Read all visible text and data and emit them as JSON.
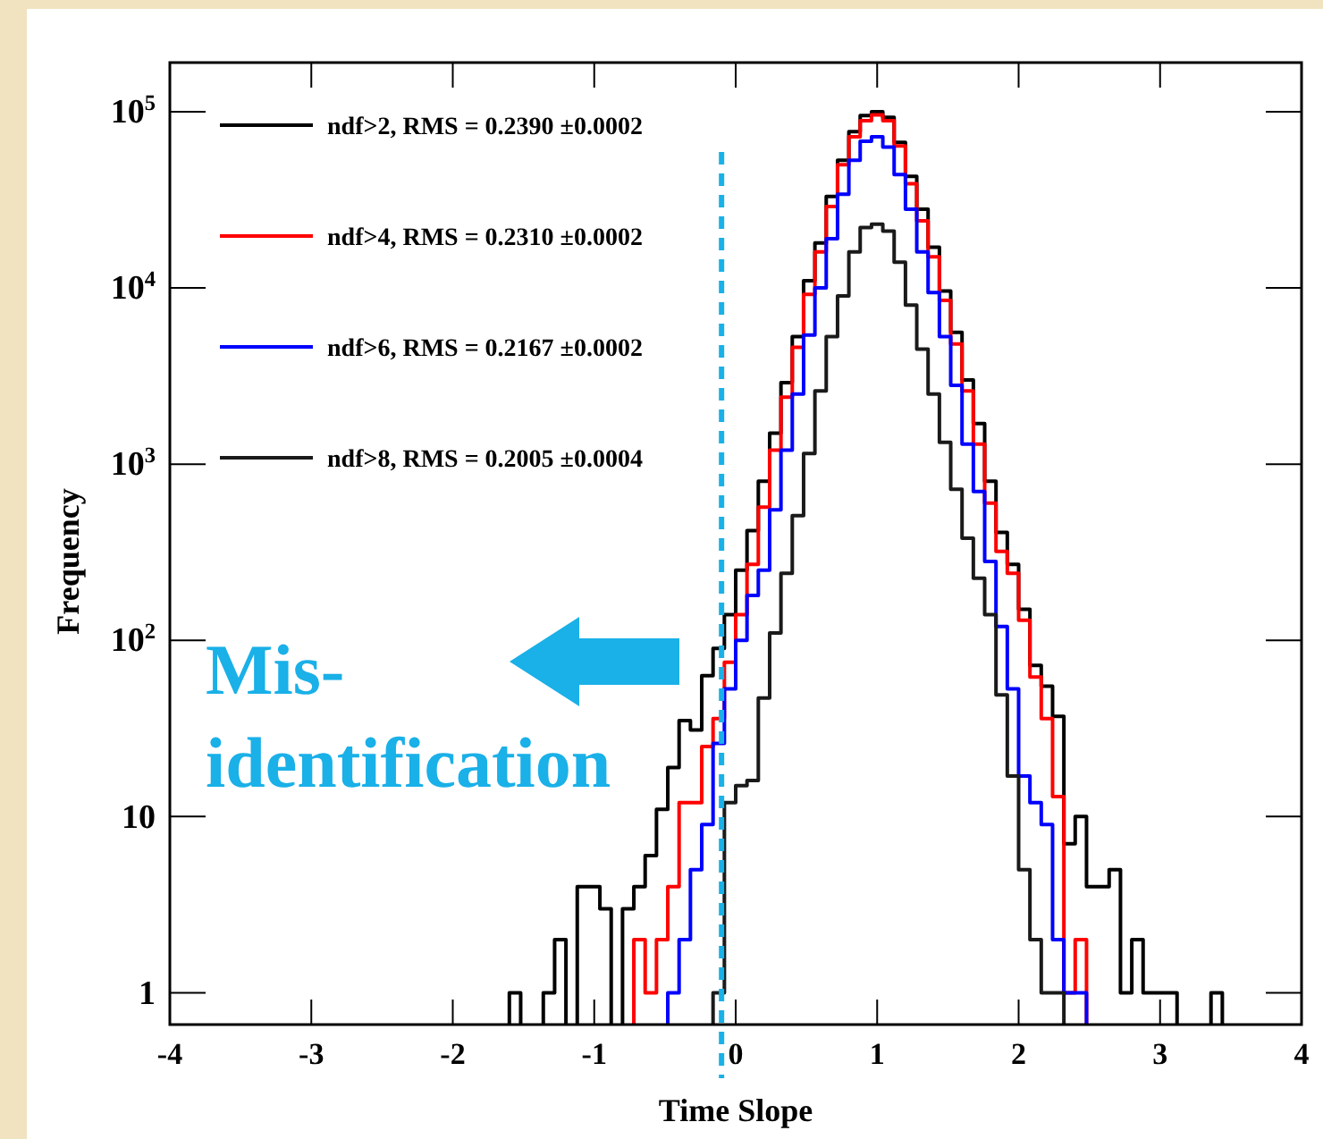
{
  "chart_data": {
    "type": "histogram",
    "xlabel": "Time Slope",
    "ylabel": "Frequency",
    "log": true,
    "legend": "top left",
    "xlim": [
      -4,
      4
    ],
    "xticks": [
      -4,
      -3,
      -2,
      -1,
      0,
      1,
      2,
      3,
      4
    ],
    "ylim": [
      0.66,
      190000
    ],
    "yticks": [
      1,
      10,
      {
        "value": 100,
        "label": "10$^{2}$"
      },
      {
        "value": 1000,
        "label": "10$^{3}$"
      },
      {
        "value": 10000,
        "label": "10$^{4}$"
      },
      {
        "value": 100000,
        "label": "10$^{5}$"
      }
    ],
    "bins": [
      -4,
      -3.92,
      -3.84,
      -3.76,
      -3.68,
      -3.6,
      -3.52,
      -3.44,
      -3.36,
      -3.28,
      -3.2,
      -3.12,
      -3.04,
      -2.96,
      -2.88,
      -2.8,
      -2.72,
      -2.64,
      -2.56,
      -2.48,
      -2.4,
      -2.32,
      -2.24,
      -2.16,
      -2.08,
      -2,
      -1.92,
      -1.84,
      -1.76,
      -1.68,
      -1.6,
      -1.52,
      -1.44,
      -1.36,
      -1.28,
      -1.2,
      -1.12,
      -1.04,
      -0.96,
      -0.88,
      -0.8,
      -0.72,
      -0.64,
      -0.56,
      -0.48,
      -0.4,
      -0.32,
      -0.24,
      -0.16,
      -0.08,
      0,
      0.08,
      0.16,
      0.24,
      0.32,
      0.4,
      0.48,
      0.56,
      0.64,
      0.72,
      0.8,
      0.88,
      0.96,
      1.04,
      1.12,
      1.2,
      1.28,
      1.36,
      1.44,
      1.52,
      1.6,
      1.68,
      1.76,
      1.84,
      1.92,
      2,
      2.08,
      2.16,
      2.24,
      2.32,
      2.4,
      2.48,
      2.56,
      2.64,
      2.72,
      2.8,
      2.88,
      2.96,
      3.04,
      3.12,
      3.2,
      3.28,
      3.36,
      3.44,
      3.52,
      3.6,
      3.68,
      3.76,
      3.84,
      3.92,
      4
    ],
    "series": [
      {
        "name": "ndf>2, RMS = 0.2390 ±0.0002",
        "color": "#000000",
        "values": [
          null,
          null,
          null,
          null,
          null,
          null,
          null,
          null,
          null,
          null,
          null,
          null,
          null,
          null,
          null,
          null,
          null,
          null,
          null,
          null,
          null,
          null,
          null,
          null,
          null,
          null,
          null,
          null,
          null,
          null,
          1,
          null,
          null,
          1,
          2,
          null,
          4,
          4,
          3,
          null,
          3,
          4,
          6,
          11,
          19,
          35,
          31,
          63,
          90,
          140,
          250,
          420,
          800,
          1500,
          2900,
          5300,
          11000,
          18000,
          33000,
          53000,
          77000,
          95000,
          100000,
          93000,
          67000,
          43000,
          28000,
          17000,
          9600,
          5600,
          3000,
          1700,
          800,
          410,
          270,
          150,
          72,
          55,
          37,
          7,
          10,
          4,
          4,
          5,
          1,
          2,
          1,
          1,
          1,
          null,
          null,
          null,
          1,
          null,
          null,
          null,
          null,
          null,
          null,
          null
        ]
      },
      {
        "name": "ndf>4, RMS = 0.2310 ±0.0002",
        "color": "#ff0000",
        "values": [
          null,
          null,
          null,
          null,
          null,
          null,
          null,
          null,
          null,
          null,
          null,
          null,
          null,
          null,
          null,
          null,
          null,
          null,
          null,
          null,
          null,
          null,
          null,
          null,
          null,
          null,
          null,
          null,
          null,
          null,
          null,
          null,
          null,
          null,
          null,
          null,
          null,
          null,
          null,
          null,
          null,
          2,
          1,
          2,
          4,
          12,
          12,
          25,
          36,
          75,
          140,
          270,
          570,
          1200,
          2400,
          4600,
          9200,
          16000,
          29000,
          50000,
          72000,
          89000,
          96000,
          89000,
          64000,
          39000,
          24000,
          15000,
          8500,
          4800,
          2600,
          1300,
          600,
          320,
          240,
          130,
          62,
          36,
          13,
          1,
          2,
          null,
          null,
          null,
          null,
          null,
          null,
          null,
          null,
          null,
          null,
          null,
          null,
          null,
          null,
          null,
          null,
          null,
          null,
          null
        ]
      },
      {
        "name": "ndf>6, RMS = 0.2167 ±0.0002",
        "color": "#0000ff",
        "values": [
          null,
          null,
          null,
          null,
          null,
          null,
          null,
          null,
          null,
          null,
          null,
          null,
          null,
          null,
          null,
          null,
          null,
          null,
          null,
          null,
          null,
          null,
          null,
          null,
          null,
          null,
          null,
          null,
          null,
          null,
          null,
          null,
          null,
          null,
          null,
          null,
          null,
          null,
          null,
          null,
          null,
          null,
          null,
          null,
          1,
          2,
          5,
          9,
          26,
          53,
          100,
          180,
          250,
          550,
          1200,
          2500,
          5400,
          10000,
          19000,
          34000,
          53000,
          68000,
          72000,
          63000,
          44000,
          28000,
          16000,
          9400,
          5300,
          2800,
          1300,
          700,
          280,
          120,
          53,
          17,
          12,
          9,
          2,
          1,
          1,
          null,
          null,
          null,
          null,
          null,
          null,
          null,
          null,
          null,
          null,
          null,
          null,
          null,
          null,
          null,
          null,
          null,
          null,
          null
        ]
      },
      {
        "name": "ndf>8, RMS = 0.2005 ±0.0004",
        "color": "#1a1a1a",
        "values": [
          null,
          null,
          null,
          null,
          null,
          null,
          null,
          null,
          null,
          null,
          null,
          null,
          null,
          null,
          null,
          null,
          null,
          null,
          null,
          null,
          null,
          null,
          null,
          null,
          null,
          null,
          null,
          null,
          null,
          null,
          null,
          null,
          null,
          null,
          null,
          null,
          null,
          null,
          null,
          null,
          null,
          null,
          null,
          null,
          null,
          null,
          null,
          null,
          1,
          12,
          15,
          16,
          47,
          110,
          240,
          510,
          1150,
          2600,
          5300,
          9000,
          16000,
          22000,
          23000,
          21000,
          14000,
          8000,
          4500,
          2500,
          1330,
          720,
          380,
          225,
          140,
          49,
          17,
          5,
          2,
          1,
          1,
          null,
          null,
          null,
          null,
          null,
          null,
          null,
          null,
          null,
          null,
          null,
          null,
          null,
          null,
          null,
          null,
          null,
          null,
          null,
          null,
          null
        ]
      }
    ],
    "ref_lines": [
      {
        "axis": "x",
        "value": -0.1,
        "color": "#1ab0e8",
        "line_style": "dashed"
      }
    ],
    "annotations": [
      "Mis-identification"
    ]
  }
}
